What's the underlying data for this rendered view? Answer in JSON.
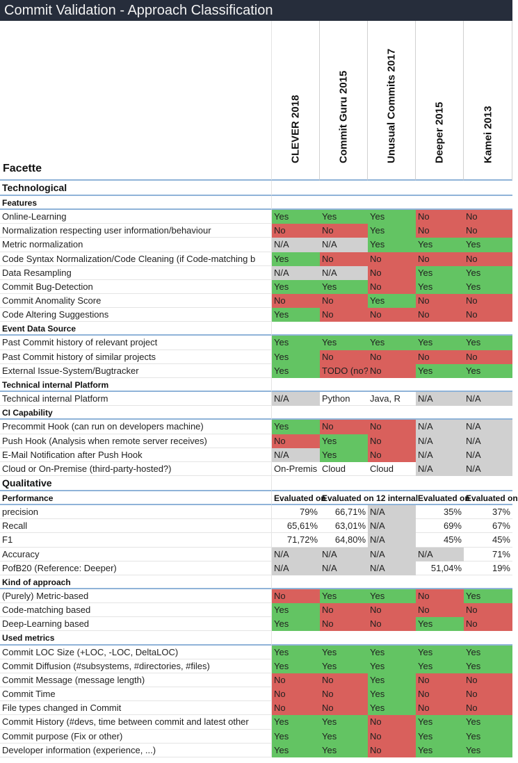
{
  "window": {
    "title": "Commit Validation - Approach Classification"
  },
  "header": {
    "facette_label": "Facette",
    "columns": [
      "CLEVER 2018",
      "Commit Guru 2015",
      "Unusual Commits 2017",
      "Deeper 2015",
      "Kamei 2013"
    ]
  },
  "colors": {
    "yes": "#63c463",
    "no": "#d9605c",
    "na": "#d0d0d0",
    "header_bar": "#262d3b",
    "rule": "#8fb3d8"
  },
  "rows": [
    {
      "type": "section",
      "label": "Technological"
    },
    {
      "type": "sub",
      "label": "Features"
    },
    {
      "type": "data",
      "label": "Online-Learning",
      "cells": [
        [
          "Yes",
          "yes"
        ],
        [
          "Yes",
          "yes"
        ],
        [
          "Yes",
          "yes"
        ],
        [
          "No",
          "no"
        ],
        [
          "No",
          "no"
        ]
      ]
    },
    {
      "type": "data",
      "label": "Normalization respecting user information/behaviour",
      "cells": [
        [
          "No",
          "no"
        ],
        [
          "No",
          "no"
        ],
        [
          "Yes",
          "yes"
        ],
        [
          "No",
          "no"
        ],
        [
          "No",
          "no"
        ]
      ]
    },
    {
      "type": "data",
      "label": "Metric normalization",
      "cells": [
        [
          "N/A",
          "na"
        ],
        [
          "N/A",
          "na"
        ],
        [
          "Yes",
          "yes"
        ],
        [
          "Yes",
          "yes"
        ],
        [
          "Yes",
          "yes"
        ]
      ]
    },
    {
      "type": "data",
      "label": "Code Syntax Normalization/Code Cleaning (if Code-matching b",
      "cells": [
        [
          "Yes",
          "yes"
        ],
        [
          "No",
          "no"
        ],
        [
          "No",
          "no"
        ],
        [
          "No",
          "no"
        ],
        [
          "No",
          "no"
        ]
      ]
    },
    {
      "type": "data",
      "label": "Data Resampling",
      "cells": [
        [
          "N/A",
          "na"
        ],
        [
          "N/A",
          "na"
        ],
        [
          "No",
          "no"
        ],
        [
          "Yes",
          "yes"
        ],
        [
          "Yes",
          "yes"
        ]
      ]
    },
    {
      "type": "data",
      "label": "Commit Bug-Detection",
      "cells": [
        [
          "Yes",
          "yes"
        ],
        [
          "Yes",
          "yes"
        ],
        [
          "No",
          "no"
        ],
        [
          "Yes",
          "yes"
        ],
        [
          "Yes",
          "yes"
        ]
      ]
    },
    {
      "type": "data",
      "label": "Commit Anomality Score",
      "cells": [
        [
          "No",
          "no"
        ],
        [
          "No",
          "no"
        ],
        [
          "Yes",
          "yes"
        ],
        [
          "No",
          "no"
        ],
        [
          "No",
          "no"
        ]
      ]
    },
    {
      "type": "data",
      "label": "Code Altering Suggestions",
      "cells": [
        [
          "Yes",
          "yes"
        ],
        [
          "No",
          "no"
        ],
        [
          "No",
          "no"
        ],
        [
          "No",
          "no"
        ],
        [
          "No",
          "no"
        ]
      ]
    },
    {
      "type": "sub",
      "label": "Event Data Source"
    },
    {
      "type": "data",
      "label": "Past Commit history of relevant project",
      "cells": [
        [
          "Yes",
          "yes"
        ],
        [
          "Yes",
          "yes"
        ],
        [
          "Yes",
          "yes"
        ],
        [
          "Yes",
          "yes"
        ],
        [
          "Yes",
          "yes"
        ]
      ]
    },
    {
      "type": "data",
      "label": "Past Commit history of similar projects",
      "cells": [
        [
          "Yes",
          "yes"
        ],
        [
          "No",
          "no"
        ],
        [
          "No",
          "no"
        ],
        [
          "No",
          "no"
        ],
        [
          "No",
          "no"
        ]
      ]
    },
    {
      "type": "data",
      "label": "External Issue-System/Bugtracker",
      "cells": [
        [
          "Yes",
          "yes"
        ],
        [
          "TODO (no?",
          "no"
        ],
        [
          "No",
          "no"
        ],
        [
          "Yes",
          "yes"
        ],
        [
          "Yes",
          "yes"
        ]
      ]
    },
    {
      "type": "sub",
      "label": "Technical internal Platform"
    },
    {
      "type": "data",
      "label": "Technical internal Platform",
      "cells": [
        [
          "N/A",
          "na"
        ],
        [
          "Python",
          ""
        ],
        [
          "Java, R",
          ""
        ],
        [
          "N/A",
          "na"
        ],
        [
          "N/A",
          "na"
        ]
      ]
    },
    {
      "type": "sub",
      "label": "CI Capability"
    },
    {
      "type": "data",
      "label": "Precommit Hook (can run on developers machine)",
      "cells": [
        [
          "Yes",
          "yes"
        ],
        [
          "No",
          "no"
        ],
        [
          "No",
          "no"
        ],
        [
          "N/A",
          "na"
        ],
        [
          "N/A",
          "na"
        ]
      ]
    },
    {
      "type": "data",
      "label": "Push Hook (Analysis when remote server receives)",
      "cells": [
        [
          "No",
          "no"
        ],
        [
          "Yes",
          "yes"
        ],
        [
          "No",
          "no"
        ],
        [
          "N/A",
          "na"
        ],
        [
          "N/A",
          "na"
        ]
      ]
    },
    {
      "type": "data",
      "label": "E-Mail Notification after Push Hook",
      "cells": [
        [
          "N/A",
          "na"
        ],
        [
          "Yes",
          "yes"
        ],
        [
          "No",
          "no"
        ],
        [
          "N/A",
          "na"
        ],
        [
          "N/A",
          "na"
        ]
      ]
    },
    {
      "type": "data",
      "label": "Cloud or On-Premise (third-party-hosted?)",
      "cells": [
        [
          "On-Premis",
          ""
        ],
        [
          "Cloud",
          ""
        ],
        [
          "Cloud",
          ""
        ],
        [
          "N/A",
          "na"
        ],
        [
          "N/A",
          "na"
        ]
      ]
    },
    {
      "type": "section",
      "label": "Qualitative"
    },
    {
      "type": "subcells",
      "label": "Performance",
      "cells": [
        "Evaluated on",
        "Evaluated on 12 internal",
        "",
        "Evaluated on",
        "Evaluated on"
      ]
    },
    {
      "type": "data",
      "label": "precision",
      "cells": [
        [
          "79%",
          "",
          "r"
        ],
        [
          "66,71%",
          "",
          "r"
        ],
        [
          "N/A",
          "na"
        ],
        [
          "35%",
          "",
          "r"
        ],
        [
          "37%",
          "",
          "r"
        ]
      ]
    },
    {
      "type": "data",
      "label": "Recall",
      "cells": [
        [
          "65,61%",
          "",
          "r"
        ],
        [
          "63,01%",
          "",
          "r"
        ],
        [
          "N/A",
          "na"
        ],
        [
          "69%",
          "",
          "r"
        ],
        [
          "67%",
          "",
          "r"
        ]
      ]
    },
    {
      "type": "data",
      "label": "F1",
      "cells": [
        [
          "71,72%",
          "",
          "r"
        ],
        [
          "64,80%",
          "",
          "r"
        ],
        [
          "N/A",
          "na"
        ],
        [
          "45%",
          "",
          "r"
        ],
        [
          "45%",
          "",
          "r"
        ]
      ]
    },
    {
      "type": "data",
      "label": "Accuracy",
      "cells": [
        [
          "N/A",
          "na"
        ],
        [
          "N/A",
          "na"
        ],
        [
          "N/A",
          "na"
        ],
        [
          "N/A",
          "na"
        ],
        [
          "71%",
          "",
          "r"
        ]
      ]
    },
    {
      "type": "data",
      "label": "PofB20 (Reference: Deeper)",
      "cells": [
        [
          "N/A",
          "na"
        ],
        [
          "N/A",
          "na"
        ],
        [
          "N/A",
          "na"
        ],
        [
          "51,04%",
          "",
          "r"
        ],
        [
          "19%",
          "",
          "r"
        ]
      ]
    },
    {
      "type": "sub",
      "label": "Kind of approach"
    },
    {
      "type": "data",
      "label": "(Purely) Metric-based",
      "cells": [
        [
          "No",
          "no"
        ],
        [
          "Yes",
          "yes"
        ],
        [
          "Yes",
          "yes"
        ],
        [
          "No",
          "no"
        ],
        [
          "Yes",
          "yes"
        ]
      ]
    },
    {
      "type": "data",
      "label": "Code-matching based",
      "cells": [
        [
          "Yes",
          "yes"
        ],
        [
          "No",
          "no"
        ],
        [
          "No",
          "no"
        ],
        [
          "No",
          "no"
        ],
        [
          "No",
          "no"
        ]
      ]
    },
    {
      "type": "data",
      "label": "Deep-Learning based",
      "cells": [
        [
          "Yes",
          "yes"
        ],
        [
          "No",
          "no"
        ],
        [
          "No",
          "no"
        ],
        [
          "Yes",
          "yes"
        ],
        [
          "No",
          "no"
        ]
      ]
    },
    {
      "type": "sub",
      "label": "Used metrics"
    },
    {
      "type": "data",
      "label": "Commit LOC Size (+LOC, -LOC, DeltaLOC)",
      "cells": [
        [
          "Yes",
          "yes"
        ],
        [
          "Yes",
          "yes"
        ],
        [
          "Yes",
          "yes"
        ],
        [
          "Yes",
          "yes"
        ],
        [
          "Yes",
          "yes"
        ]
      ]
    },
    {
      "type": "data",
      "label": "Commit Diffusion (#subsystems, #directories, #files)",
      "cells": [
        [
          "Yes",
          "yes"
        ],
        [
          "Yes",
          "yes"
        ],
        [
          "Yes",
          "yes"
        ],
        [
          "Yes",
          "yes"
        ],
        [
          "Yes",
          "yes"
        ]
      ]
    },
    {
      "type": "data",
      "label": "Commit Message (message length)",
      "cells": [
        [
          "No",
          "no"
        ],
        [
          "No",
          "no"
        ],
        [
          "Yes",
          "yes"
        ],
        [
          "No",
          "no"
        ],
        [
          "No",
          "no"
        ]
      ]
    },
    {
      "type": "data",
      "label": "Commit Time",
      "cells": [
        [
          "No",
          "no"
        ],
        [
          "No",
          "no"
        ],
        [
          "Yes",
          "yes"
        ],
        [
          "No",
          "no"
        ],
        [
          "No",
          "no"
        ]
      ]
    },
    {
      "type": "data",
      "label": "File types changed in Commit",
      "cells": [
        [
          "No",
          "no"
        ],
        [
          "No",
          "no"
        ],
        [
          "Yes",
          "yes"
        ],
        [
          "No",
          "no"
        ],
        [
          "No",
          "no"
        ]
      ]
    },
    {
      "type": "data",
      "label": "Commit History (#devs, time between commit and latest other",
      "cells": [
        [
          "Yes",
          "yes"
        ],
        [
          "Yes",
          "yes"
        ],
        [
          "No",
          "no"
        ],
        [
          "Yes",
          "yes"
        ],
        [
          "Yes",
          "yes"
        ]
      ]
    },
    {
      "type": "data",
      "label": "Commit purpose (Fix or other)",
      "cells": [
        [
          "Yes",
          "yes"
        ],
        [
          "Yes",
          "yes"
        ],
        [
          "No",
          "no"
        ],
        [
          "Yes",
          "yes"
        ],
        [
          "Yes",
          "yes"
        ]
      ]
    },
    {
      "type": "data",
      "label": "Developer information (experience, ...)",
      "cells": [
        [
          "Yes",
          "yes"
        ],
        [
          "Yes",
          "yes"
        ],
        [
          "No",
          "no"
        ],
        [
          "Yes",
          "yes"
        ],
        [
          "Yes",
          "yes"
        ]
      ]
    }
  ]
}
